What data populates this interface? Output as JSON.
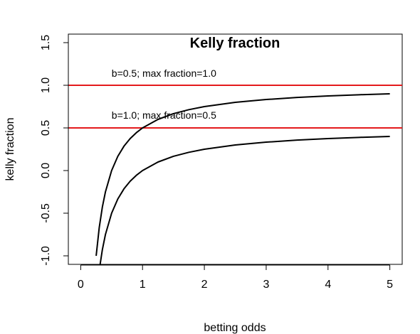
{
  "chart_data": {
    "type": "line",
    "title": "Kelly fraction",
    "xlabel": "betting odds",
    "ylabel": "kelly fraction",
    "xlim": [
      -0.2,
      5.2
    ],
    "ylim": [
      -1.1,
      1.6
    ],
    "grid": false,
    "legend": "none",
    "x_ticks": [
      0,
      1,
      2,
      3,
      4,
      5
    ],
    "x_tick_labels": [
      "0",
      "1",
      "2",
      "3",
      "4",
      "5"
    ],
    "y_ticks": [
      -1.0,
      -0.5,
      0.0,
      0.5,
      1.0,
      1.5
    ],
    "y_tick_labels": [
      "-1.0",
      "-0.5",
      "0.0",
      "0.5",
      "1.0",
      "1.5"
    ],
    "series": [
      {
        "color": "#000000",
        "x": [
          0.25,
          0.3,
          0.35,
          0.4,
          0.5,
          0.6,
          0.7,
          0.8,
          0.9,
          1.0,
          1.25,
          1.5,
          1.75,
          2.0,
          2.5,
          3.0,
          3.5,
          4.0,
          4.5,
          5.0
        ],
        "y": [
          -1.0,
          -0.667,
          -0.429,
          -0.25,
          0.0,
          0.167,
          0.286,
          0.375,
          0.444,
          0.5,
          0.6,
          0.667,
          0.714,
          0.75,
          0.8,
          0.833,
          0.857,
          0.875,
          0.889,
          0.9
        ]
      },
      {
        "color": "#000000",
        "x": [
          0.27,
          0.3,
          0.35,
          0.4,
          0.5,
          0.6,
          0.7,
          0.8,
          0.9,
          1.0,
          1.25,
          1.5,
          1.75,
          2.0,
          2.5,
          3.0,
          3.5,
          4.0,
          4.5,
          5.0
        ],
        "y": [
          -1.352,
          -1.167,
          -0.929,
          -0.75,
          -0.5,
          -0.333,
          -0.214,
          -0.125,
          -0.056,
          0.0,
          0.1,
          0.167,
          0.214,
          0.25,
          0.3,
          0.333,
          0.357,
          0.375,
          0.389,
          0.4
        ]
      }
    ],
    "hlines": [
      {
        "y": 1.0,
        "color": "#e41a1c"
      },
      {
        "y": 0.5,
        "color": "#e41a1c"
      }
    ],
    "annotations": [
      {
        "text": "b=0.5; max fraction=1.0",
        "x": 0.5,
        "y": 1.1
      },
      {
        "text": "b=1.0; max fraction=0.5",
        "x": 0.5,
        "y": 0.61
      }
    ]
  }
}
